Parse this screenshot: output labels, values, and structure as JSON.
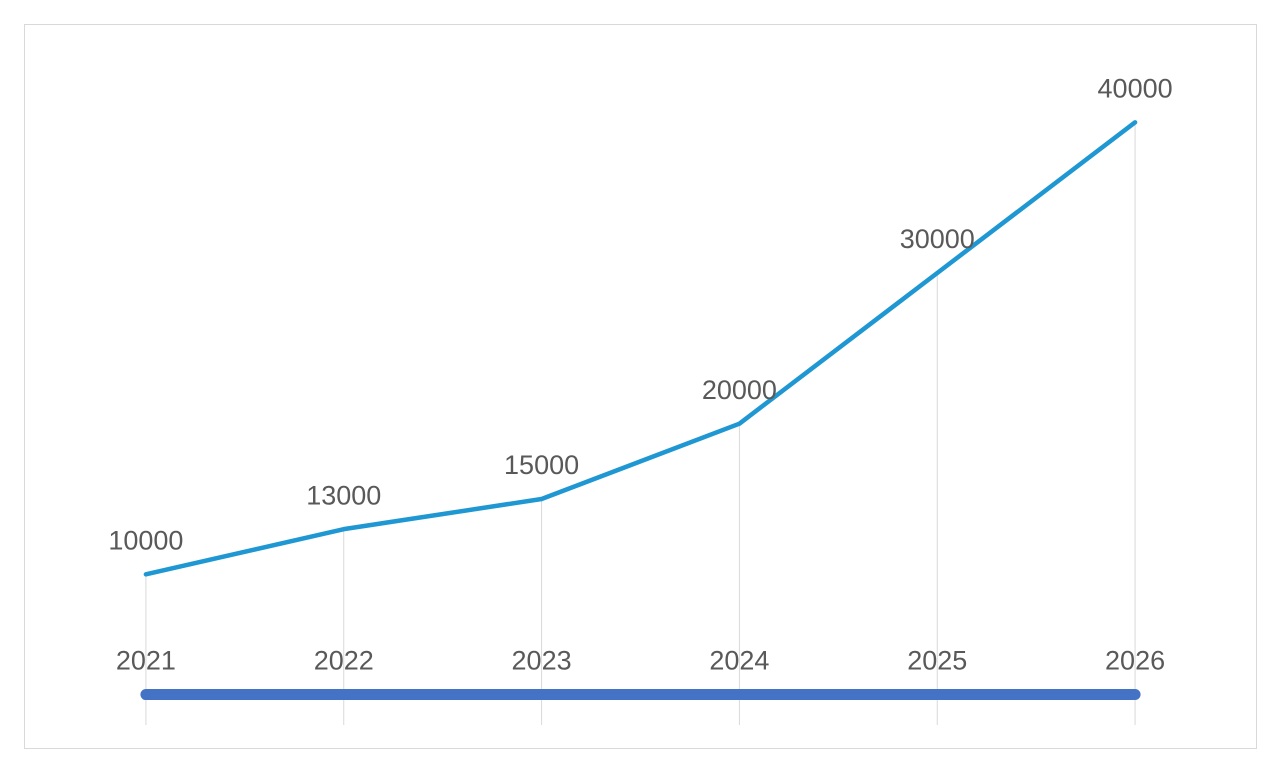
{
  "chart_data": {
    "type": "line",
    "categories": [
      null,
      null,
      null,
      null,
      null,
      null
    ],
    "series": [
      {
        "color": "#1f97d3",
        "values": [
          10000,
          13000,
          15000,
          20000,
          30000,
          40000
        ]
      },
      {
        "color": "#4472c4",
        "values": [
          2021,
          2022,
          2023,
          2024,
          2025,
          2026
        ]
      }
    ],
    "ylim": [
      0,
      45000
    ],
    "data_labels": true,
    "drop_lines": true
  }
}
